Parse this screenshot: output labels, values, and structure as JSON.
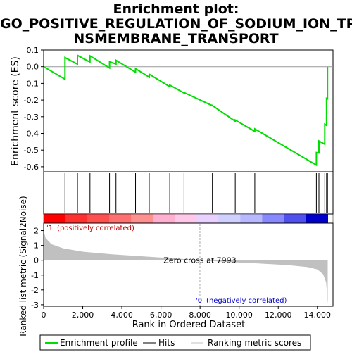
{
  "chart_data": {
    "type": "line",
    "title_lines": [
      "Enrichment plot:",
      "GO_POSITIVE_REGULATION_OF_SODIUM_ION_TRA",
      "NSMEMBRANE_TRANSPORT"
    ],
    "es_panel": {
      "ylabel": "Enrichment score (ES)",
      "ylim": [
        -0.63,
        0.1
      ],
      "yticks": [
        "0.1",
        "0.0",
        "-0.1",
        "-0.2",
        "-0.3",
        "-0.4",
        "-0.5",
        "-0.6"
      ],
      "ytick_values": [
        0.1,
        0.0,
        -0.1,
        -0.2,
        -0.3,
        -0.4,
        -0.5,
        -0.6
      ],
      "color": "#00dd00",
      "hits": [
        {
          "x": 1090,
          "es_before": -0.075,
          "es_after": 0.055
        },
        {
          "x": 1730,
          "es_before": 0.015,
          "es_after": 0.068
        },
        {
          "x": 2370,
          "es_before": 0.028,
          "es_after": 0.065
        },
        {
          "x": 3370,
          "es_before": -0.008,
          "es_after": 0.03
        },
        {
          "x": 3700,
          "es_before": 0.015,
          "es_after": 0.038
        },
        {
          "x": 4700,
          "es_before": -0.033,
          "es_after": -0.012
        },
        {
          "x": 5400,
          "es_before": -0.063,
          "es_after": -0.045
        },
        {
          "x": 6450,
          "es_before": -0.12,
          "es_after": -0.11
        },
        {
          "x": 7180,
          "es_before": -0.158,
          "es_after": -0.155
        },
        {
          "x": 8630,
          "es_before": -0.234,
          "es_after": -0.233
        },
        {
          "x": 9800,
          "es_before": -0.327,
          "es_after": -0.32
        },
        {
          "x": 10800,
          "es_before": -0.388,
          "es_after": -0.373
        },
        {
          "x": 13950,
          "es_before": -0.59,
          "es_after": -0.515
        },
        {
          "x": 14080,
          "es_before": -0.517,
          "es_after": -0.445
        },
        {
          "x": 14380,
          "es_before": -0.465,
          "es_after": -0.345
        },
        {
          "x": 14470,
          "es_before": -0.352,
          "es_after": -0.19
        },
        {
          "x": 14520,
          "es_before": -0.193,
          "es_after": 0.0
        }
      ]
    },
    "heatmap": {
      "positive_label": "'1' (positively correlated)",
      "negative_label": "'0' (negatively correlated)",
      "colors": [
        "#ff0000",
        "#ff3030",
        "#ff5050",
        "#ff7070",
        "#ff9090",
        "#ffb0d0",
        "#ffc8e8",
        "#e8d0ff",
        "#d0d0ff",
        "#b8b8ff",
        "#8888ff",
        "#5050ee",
        "#0000cc"
      ]
    },
    "metric_panel": {
      "ylabel": "Ranked list metric (Signal2Noise)",
      "ylim": [
        -3.1,
        2.5
      ],
      "yticks": [
        "2",
        "1",
        "0",
        "-1",
        "-2",
        "-3"
      ],
      "ytick_values": [
        2,
        1,
        0,
        -1,
        -2,
        -3
      ],
      "zero_cross_label": "Zero cross at 7993",
      "zero_cross": 7993,
      "profile": [
        [
          0,
          2.0
        ],
        [
          100,
          1.5
        ],
        [
          400,
          1.08
        ],
        [
          1000,
          0.8
        ],
        [
          2000,
          0.58
        ],
        [
          3500,
          0.4
        ],
        [
          5000,
          0.27
        ],
        [
          6500,
          0.14
        ],
        [
          7993,
          0.0
        ],
        [
          9500,
          -0.12
        ],
        [
          11000,
          -0.22
        ],
        [
          12500,
          -0.33
        ],
        [
          13500,
          -0.46
        ],
        [
          14000,
          -0.62
        ],
        [
          14300,
          -0.95
        ],
        [
          14450,
          -1.5
        ],
        [
          14530,
          -2.95
        ]
      ]
    },
    "x_axis": {
      "label": "Rank in Ordered Dataset",
      "xlim": [
        0,
        14800
      ],
      "ticks": [
        "0",
        "2,000",
        "4,000",
        "6,000",
        "8,000",
        "10,000",
        "12,000",
        "14,000"
      ],
      "tick_values": [
        0,
        2000,
        4000,
        6000,
        8000,
        10000,
        12000,
        14000
      ],
      "n_genes": 14530
    },
    "legend": {
      "items": [
        {
          "label": "Enrichment profile",
          "color": "#00dd00"
        },
        {
          "label": "Hits",
          "color": "#000000"
        },
        {
          "label": "Ranking metric scores",
          "color": "#c0c0c0"
        }
      ]
    }
  }
}
